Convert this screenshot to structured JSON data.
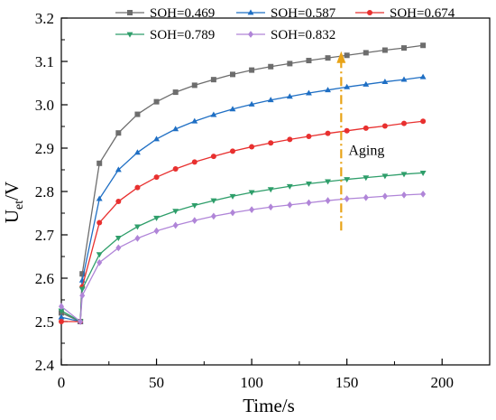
{
  "chart_data": {
    "type": "line",
    "xlabel": "Time/s",
    "ylabel": "U",
    "ylabel_sub": "et",
    "ylabel_suffix": "/V",
    "xlim": [
      0,
      225
    ],
    "ylim": [
      2.4,
      3.2
    ],
    "xticks": [
      0,
      50,
      100,
      150,
      200
    ],
    "yticks": [
      2.4,
      2.5,
      2.6,
      2.7,
      2.8,
      2.9,
      3.0,
      3.1,
      3.2
    ],
    "xtick_labels": [
      "0",
      "50",
      "100",
      "150",
      "200"
    ],
    "ytick_labels": [
      "2.4",
      "2.5",
      "2.6",
      "2.7",
      "2.8",
      "2.9",
      "3.0",
      "3.1",
      "3.2"
    ],
    "grid": false,
    "legend_position": "top",
    "annotation": {
      "text": "Aging",
      "arrow": {
        "x": 147,
        "y_from": 2.71,
        "y_to": 3.115
      }
    },
    "series": [
      {
        "name": "SOH=0.469",
        "color": "#6d6d6d",
        "marker": "square",
        "x": [
          0,
          10,
          11,
          20,
          30,
          40,
          50,
          60,
          70,
          80,
          90,
          100,
          110,
          120,
          130,
          140,
          150,
          160,
          170,
          180,
          190
        ],
        "y": [
          2.52,
          2.5,
          2.61,
          2.865,
          2.935,
          2.978,
          3.007,
          3.029,
          3.045,
          3.058,
          3.07,
          3.08,
          3.088,
          3.095,
          3.102,
          3.108,
          3.114,
          3.12,
          3.126,
          3.131,
          3.137
        ]
      },
      {
        "name": "SOH=0.587",
        "color": "#1f6fc4",
        "marker": "triangle-up",
        "x": [
          0,
          10,
          11,
          20,
          30,
          40,
          50,
          60,
          70,
          80,
          90,
          100,
          110,
          120,
          130,
          140,
          150,
          160,
          170,
          180,
          190
        ],
        "y": [
          2.51,
          2.5,
          2.595,
          2.783,
          2.85,
          2.89,
          2.921,
          2.944,
          2.962,
          2.977,
          2.99,
          3.001,
          3.011,
          3.019,
          3.027,
          3.034,
          3.041,
          3.047,
          3.053,
          3.058,
          3.064
        ]
      },
      {
        "name": "SOH=0.674",
        "color": "#e8302f",
        "marker": "circle",
        "x": [
          0,
          10,
          11,
          20,
          30,
          40,
          50,
          60,
          70,
          80,
          90,
          100,
          110,
          120,
          130,
          140,
          150,
          160,
          170,
          180,
          190
        ],
        "y": [
          2.5,
          2.5,
          2.58,
          2.728,
          2.777,
          2.809,
          2.833,
          2.852,
          2.868,
          2.881,
          2.893,
          2.903,
          2.912,
          2.92,
          2.927,
          2.934,
          2.94,
          2.946,
          2.951,
          2.957,
          2.962
        ]
      },
      {
        "name": "SOH=0.789",
        "color": "#2e9e6a",
        "marker": "triangle-down",
        "x": [
          0,
          10,
          11,
          20,
          30,
          40,
          50,
          60,
          70,
          80,
          90,
          100,
          110,
          120,
          130,
          140,
          150,
          160,
          170,
          180,
          190
        ],
        "y": [
          2.525,
          2.5,
          2.575,
          2.655,
          2.693,
          2.719,
          2.739,
          2.755,
          2.768,
          2.779,
          2.789,
          2.798,
          2.805,
          2.812,
          2.818,
          2.823,
          2.828,
          2.832,
          2.836,
          2.84,
          2.843
        ]
      },
      {
        "name": "SOH=0.832",
        "color": "#b085d8",
        "marker": "diamond",
        "x": [
          0,
          10,
          11,
          20,
          30,
          40,
          50,
          60,
          70,
          80,
          90,
          100,
          110,
          120,
          130,
          140,
          150,
          160,
          170,
          180,
          190
        ],
        "y": [
          2.535,
          2.5,
          2.56,
          2.636,
          2.67,
          2.692,
          2.709,
          2.722,
          2.733,
          2.743,
          2.751,
          2.758,
          2.764,
          2.769,
          2.774,
          2.779,
          2.783,
          2.786,
          2.789,
          2.792,
          2.794
        ]
      }
    ]
  }
}
